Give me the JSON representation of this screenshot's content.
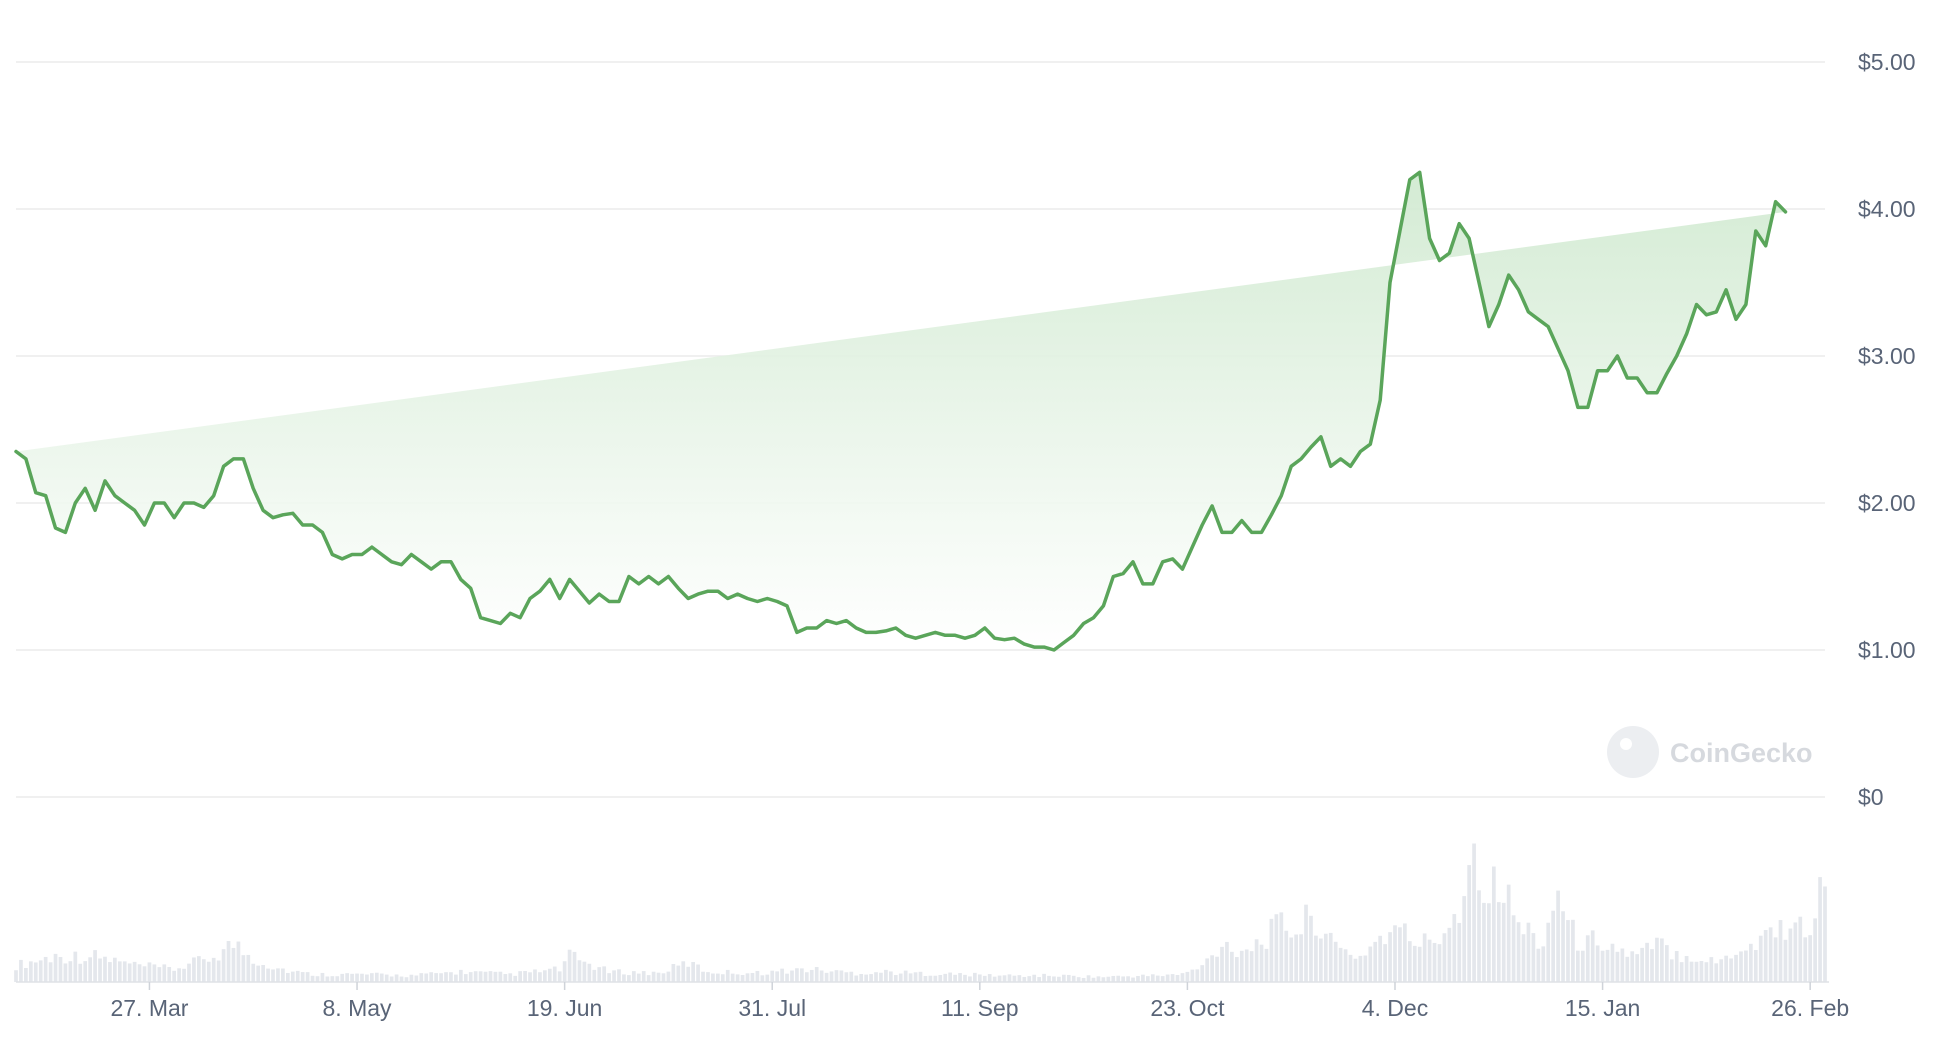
{
  "colors": {
    "line": "#5aa55a",
    "area_top": "#cfe9cf",
    "area_bottom": "#ffffff",
    "volume": "#e4e7ec",
    "grid": "#ececec",
    "tick_text": "#596477"
  },
  "watermark": {
    "text": "CoinGecko",
    "icon": "gecko-logo-icon"
  },
  "chart_data": {
    "type": "area",
    "title": "",
    "xlabel": "",
    "ylabel": "",
    "ylim": [
      0,
      5
    ],
    "grid": true,
    "y_tick_values": [
      0,
      1,
      2,
      3,
      4,
      5
    ],
    "y_tick_labels": [
      "$0",
      "$1.00",
      "$2.00",
      "$3.00",
      "$4.00",
      "$5.00"
    ],
    "x_tick_labels": [
      "27. Mar",
      "8. May",
      "19. Jun",
      "31. Jul",
      "11. Sep",
      "23. Oct",
      "4. Dec",
      "15. Jan",
      "26. Feb"
    ],
    "x_tick_day_index": [
      27,
      69,
      111,
      153,
      195,
      237,
      279,
      321,
      363
    ],
    "x_range_days": [
      0,
      366
    ],
    "series": [
      {
        "kind": "price",
        "day": [
          0,
          2,
          4,
          6,
          8,
          10,
          12,
          14,
          16,
          18,
          20,
          22,
          24,
          26,
          28,
          30,
          32,
          34,
          36,
          38,
          40,
          42,
          44,
          46,
          48,
          50,
          52,
          54,
          56,
          58,
          60,
          62,
          64,
          66,
          68,
          70,
          72,
          74,
          76,
          78,
          80,
          82,
          84,
          86,
          88,
          90,
          92,
          94,
          96,
          98,
          100,
          102,
          104,
          106,
          108,
          110,
          112,
          114,
          116,
          118,
          120,
          122,
          124,
          126,
          128,
          130,
          132,
          134,
          136,
          138,
          140,
          142,
          144,
          146,
          148,
          150,
          152,
          154,
          156,
          158,
          160,
          162,
          164,
          166,
          168,
          170,
          172,
          174,
          176,
          178,
          180,
          182,
          184,
          186,
          188,
          190,
          192,
          194,
          196,
          198,
          200,
          202,
          204,
          206,
          208,
          210,
          212,
          214,
          216,
          218,
          220,
          222,
          224,
          226,
          228,
          230,
          232,
          234,
          236,
          238,
          240,
          242,
          244,
          246,
          248,
          250,
          252,
          254,
          256,
          258,
          260,
          262,
          264,
          266,
          268,
          270,
          272,
          274,
          276,
          278,
          280,
          282,
          284,
          286,
          288,
          290,
          292,
          294,
          296,
          298,
          300,
          302,
          304,
          306,
          308,
          310,
          312,
          314,
          316,
          318,
          320,
          322,
          324,
          326,
          328,
          330,
          332,
          334,
          336,
          338,
          340,
          342,
          344,
          346,
          348,
          350,
          352,
          354,
          356,
          358,
          360,
          362,
          364,
          366
        ],
        "values": [
          2.35,
          2.3,
          2.07,
          2.05,
          1.83,
          1.8,
          2.0,
          2.1,
          1.95,
          2.15,
          2.05,
          2.0,
          1.95,
          1.85,
          2.0,
          2.0,
          1.9,
          2.0,
          2.0,
          1.97,
          2.05,
          2.25,
          2.3,
          2.3,
          2.1,
          1.95,
          1.9,
          1.92,
          1.93,
          1.85,
          1.85,
          1.8,
          1.65,
          1.62,
          1.65,
          1.65,
          1.7,
          1.65,
          1.6,
          1.58,
          1.65,
          1.6,
          1.55,
          1.6,
          1.6,
          1.48,
          1.42,
          1.22,
          1.2,
          1.18,
          1.25,
          1.22,
          1.35,
          1.4,
          1.48,
          1.35,
          1.48,
          1.4,
          1.32,
          1.38,
          1.33,
          1.33,
          1.5,
          1.45,
          1.5,
          1.45,
          1.5,
          1.42,
          1.35,
          1.38,
          1.4,
          1.4,
          1.35,
          1.38,
          1.35,
          1.33,
          1.35,
          1.33,
          1.3,
          1.12,
          1.15,
          1.15,
          1.2,
          1.18,
          1.2,
          1.15,
          1.12,
          1.12,
          1.13,
          1.15,
          1.1,
          1.08,
          1.1,
          1.12,
          1.1,
          1.1,
          1.08,
          1.1,
          1.15,
          1.08,
          1.07,
          1.08,
          1.04,
          1.02,
          1.02,
          1.0,
          1.05,
          1.1,
          1.18,
          1.22,
          1.3,
          1.5,
          1.52,
          1.6,
          1.45,
          1.45,
          1.6,
          1.62,
          1.55,
          1.7,
          1.85,
          1.98,
          1.8,
          1.8,
          1.88,
          1.8,
          1.8,
          1.92,
          2.05,
          2.25,
          2.3,
          2.38,
          2.45,
          2.25,
          2.3,
          2.25,
          2.35,
          2.4,
          2.7,
          3.5,
          3.85,
          4.2,
          4.25,
          3.8,
          3.65,
          3.7,
          3.9,
          3.8,
          3.5,
          3.2,
          3.35,
          3.55,
          3.45,
          3.3,
          3.25,
          3.2,
          3.05,
          2.9,
          2.65,
          2.65,
          2.9,
          2.9,
          3.0,
          2.85,
          2.85,
          2.75,
          2.75,
          2.88,
          3.0,
          3.15,
          3.35,
          3.28,
          3.3,
          3.45,
          3.25,
          3.35,
          3.85,
          3.75,
          4.05,
          3.98
        ]
      },
      {
        "kind": "volume",
        "day": [
          0,
          8,
          16,
          24,
          32,
          40,
          44,
          48,
          52,
          56,
          60,
          70,
          80,
          90,
          100,
          110,
          112,
          120,
          130,
          136,
          140,
          150,
          160,
          170,
          176,
          180,
          190,
          200,
          210,
          220,
          230,
          236,
          240,
          244,
          248,
          252,
          256,
          260,
          262,
          264,
          266,
          268,
          272,
          276,
          280,
          284,
          288,
          292,
          294,
          296,
          298,
          300,
          302,
          304,
          306,
          308,
          310,
          312,
          314,
          316,
          318,
          320,
          324,
          328,
          332,
          336,
          340,
          344,
          348,
          352,
          356,
          358,
          360,
          362,
          364,
          366
        ],
        "values": [
          0.13,
          0.2,
          0.2,
          0.13,
          0.1,
          0.2,
          0.3,
          0.18,
          0.12,
          0.08,
          0.06,
          0.06,
          0.05,
          0.08,
          0.06,
          0.1,
          0.2,
          0.08,
          0.07,
          0.15,
          0.08,
          0.07,
          0.1,
          0.07,
          0.08,
          0.07,
          0.06,
          0.05,
          0.05,
          0.04,
          0.05,
          0.06,
          0.12,
          0.3,
          0.25,
          0.32,
          0.45,
          0.4,
          0.55,
          0.45,
          0.3,
          0.25,
          0.2,
          0.35,
          0.4,
          0.3,
          0.35,
          0.6,
          0.95,
          1.0,
          0.7,
          0.78,
          0.62,
          0.45,
          0.4,
          0.3,
          0.45,
          0.75,
          0.45,
          0.32,
          0.3,
          0.35,
          0.25,
          0.2,
          0.3,
          0.22,
          0.2,
          0.15,
          0.25,
          0.3,
          0.45,
          0.4,
          0.5,
          0.35,
          0.6,
          0.75
        ]
      }
    ]
  }
}
